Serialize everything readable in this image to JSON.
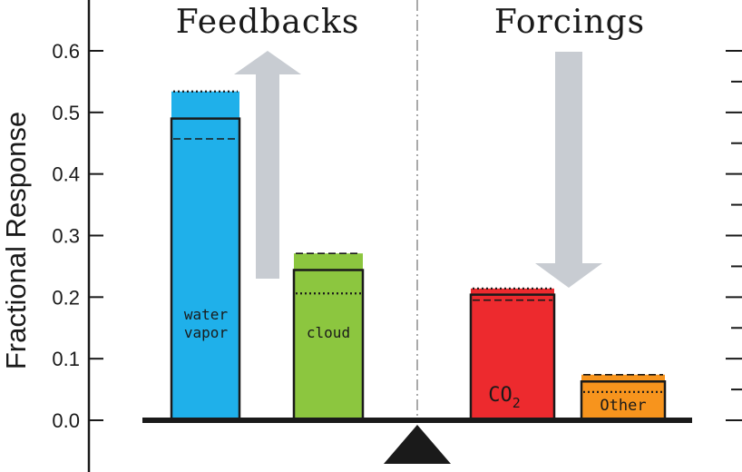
{
  "chart_data": {
    "type": "bar",
    "ylabel": "Fractional Response",
    "ylim": [
      0,
      0.6
    ],
    "y_ticks": [
      "0.0",
      "0.1",
      "0.2",
      "0.3",
      "0.4",
      "0.5",
      "0.6"
    ],
    "groups": [
      {
        "heading": "Feedbacks",
        "arrow": "up"
      },
      {
        "heading": "Forcings",
        "arrow": "down"
      }
    ],
    "categories": [
      "water vapor",
      "cloud",
      "CO2",
      "Other"
    ],
    "bars": [
      {
        "label_line1": "water",
        "label_line2": "vapor",
        "group": 0,
        "value": 0.49,
        "dashed": 0.457,
        "dotted": 0.534,
        "upper_extent": 0.534,
        "color": "#1fb0ea"
      },
      {
        "label_line1": "cloud",
        "label_line2": "",
        "group": 0,
        "value": 0.244,
        "dashed": 0.271,
        "dotted": 0.206,
        "upper_extent": 0.271,
        "color": "#8cc63f"
      },
      {
        "label_line1": "CO",
        "label_sub": "2",
        "group": 1,
        "value": 0.204,
        "dashed": 0.195,
        "dotted": 0.214,
        "upper_extent": 0.214,
        "color": "#ed2a2e"
      },
      {
        "label_line1": "Other",
        "label_line2": "",
        "group": 1,
        "value": 0.063,
        "dashed": 0.074,
        "dotted": 0.046,
        "upper_extent": 0.074,
        "color": "#f7941d"
      }
    ],
    "arrow_color": "#c8ccd2",
    "axis_color": "#1a1a1a",
    "grid": false,
    "legend": "none"
  }
}
